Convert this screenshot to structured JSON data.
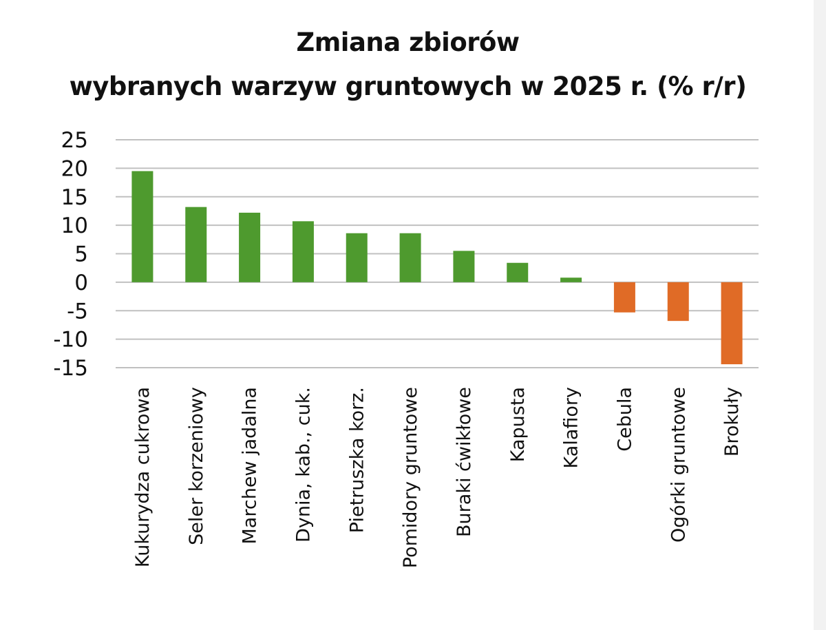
{
  "chart_data": {
    "type": "bar",
    "title_lines": [
      "Zmiana zbiorów",
      "wybranych warzyw gruntowych w 2025 r. (% r/r)"
    ],
    "categories": [
      "Kukurydza cukrowa",
      "Seler korzeniowy",
      "Marchew jadalna",
      "Dynia, kab., cuk.",
      "Pietruszka korz.",
      "Pomidory gruntowe",
      "Buraki ćwikłowe",
      "Kapusta",
      "Kalafiory",
      "Cebula",
      "Ogórki gruntowe",
      "Brokuły"
    ],
    "values": [
      19.5,
      13.2,
      12.2,
      10.7,
      8.6,
      8.6,
      5.5,
      3.4,
      0.8,
      -5.3,
      -6.8,
      -14.4
    ],
    "ylim": [
      -15,
      25
    ],
    "yticks": [
      25,
      20,
      15,
      10,
      5,
      0,
      -5,
      -10,
      -15
    ],
    "grid": true,
    "colors": {
      "positive": "#4e9a2e",
      "negative": "#e06b26",
      "grid": "#c0c0c0"
    }
  }
}
